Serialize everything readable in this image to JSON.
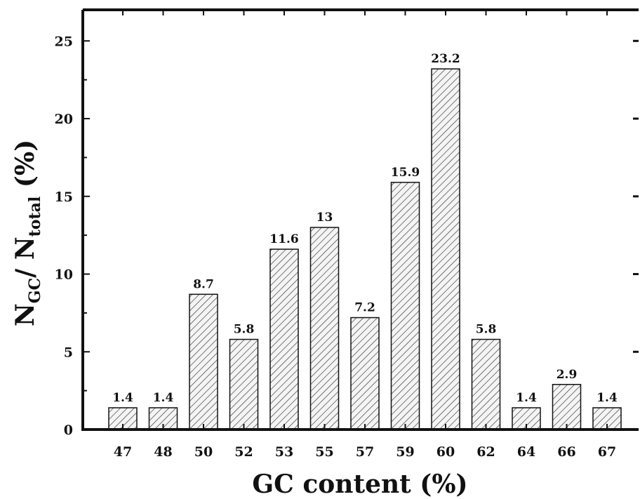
{
  "chart_data": {
    "type": "bar",
    "categories": [
      "47",
      "48",
      "50",
      "52",
      "53",
      "55",
      "57",
      "59",
      "60",
      "62",
      "64",
      "66",
      "67"
    ],
    "values": [
      1.4,
      1.4,
      8.7,
      5.8,
      11.6,
      13,
      7.2,
      15.9,
      23.2,
      5.8,
      1.4,
      2.9,
      1.4
    ],
    "data_labels": [
      "1.4",
      "1.4",
      "8.7",
      "5.8",
      "11.6",
      "13",
      "7.2",
      "15.9",
      "23.2",
      "5.8",
      "1.4",
      "2.9",
      "1.4"
    ],
    "ylim": [
      0,
      27
    ],
    "yticks": [
      "0",
      "5",
      "10",
      "15",
      "20",
      "25"
    ],
    "xlabel": "GC content (%)",
    "ylabel": {
      "n": "N",
      "gc_sub": "GC",
      "slash": "/ N",
      "total_sub": "total",
      "unit": " (%)"
    },
    "bar_fill": "hatched diagonal",
    "grid": false,
    "legend": "none"
  }
}
